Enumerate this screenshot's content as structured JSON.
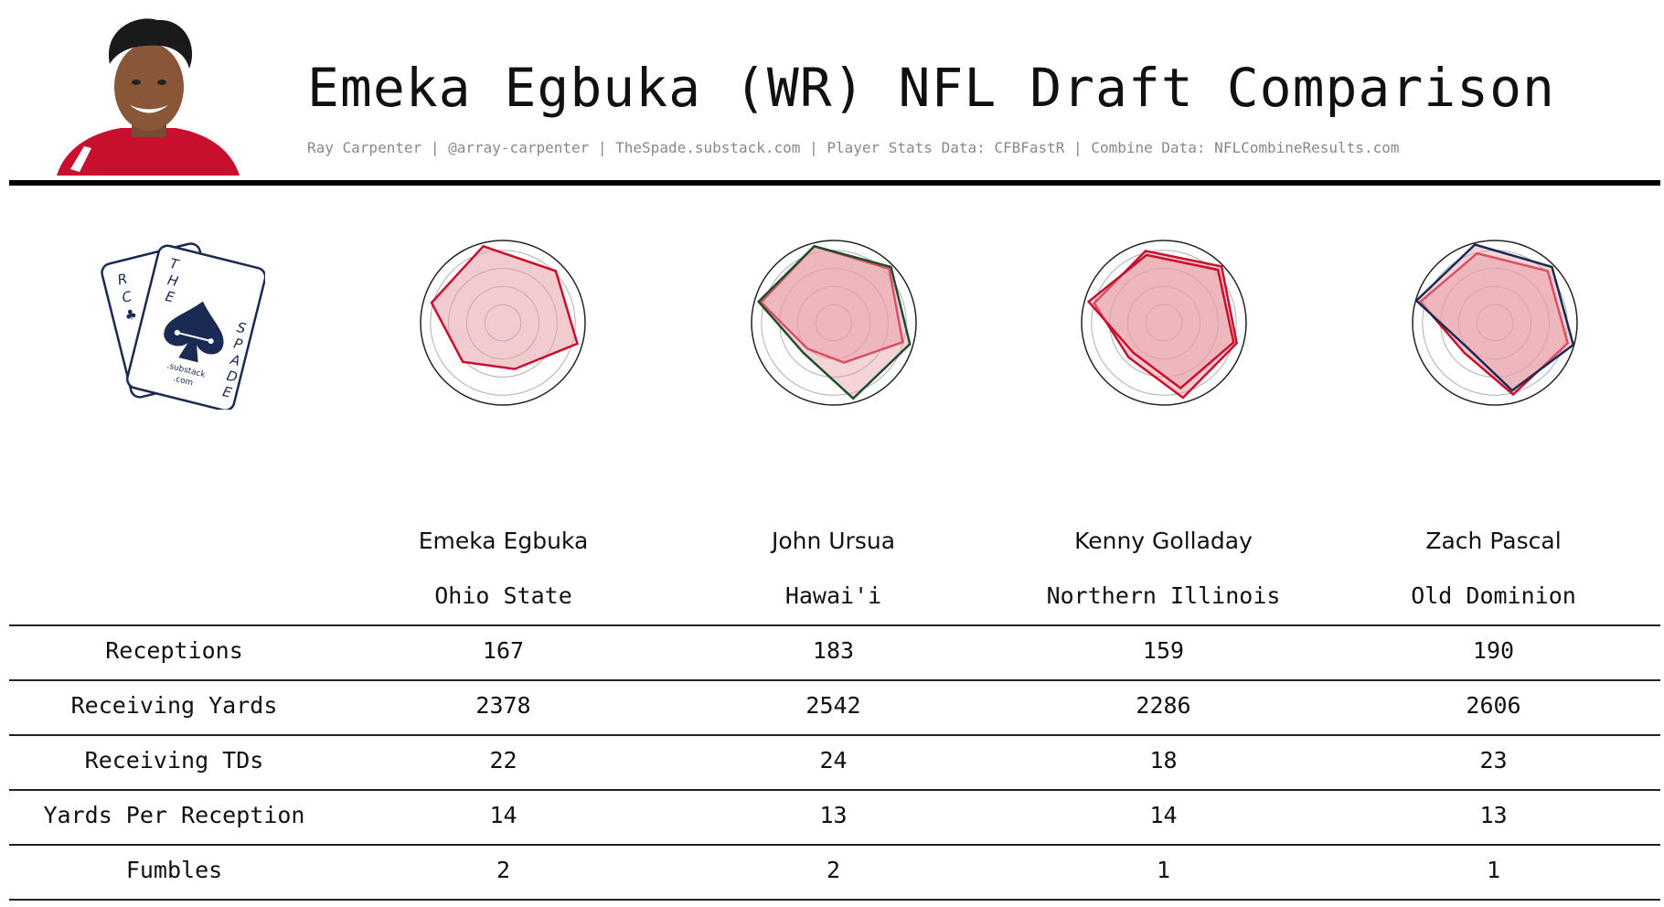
{
  "header": {
    "title": "Emeka Egbuka (WR) NFL Draft Comparison",
    "subtitle": "Ray Carpenter | @array-carpenter | TheSpade.substack.com | Player Stats Data: CFBFastR | Combine Data: NFLCombineResults.com"
  },
  "logo": {
    "letters_left": [
      "R",
      "C",
      "♣"
    ],
    "letters_right_top": [
      "T",
      "H",
      "E"
    ],
    "letters_right_bottom": [
      "S",
      "P",
      "A",
      "D",
      "E"
    ],
    "line1": ".substack",
    "line2": ".com"
  },
  "colors": {
    "ohio_state_red": "#c8102e",
    "hawaii_green": "#1f4d2b",
    "niu_red": "#c8102e",
    "odu_navy": "#1b2a52",
    "radar_fill": "#e8a0a8"
  },
  "chart_data": {
    "type": "radar",
    "charts": [
      {
        "player": "Emeka Egbuka",
        "school": "Ohio State",
        "series": [
          {
            "color": "#c8102e",
            "values": [
              0.96,
              0.9,
              0.94,
              0.58,
              0.68,
              0.9
            ]
          }
        ]
      },
      {
        "player": "John Ursua",
        "school": "Hawai'i",
        "series": [
          {
            "color": "#c8102e",
            "values": [
              0.96,
              0.94,
              0.87,
              0.5,
              0.45,
              0.92
            ]
          },
          {
            "color": "#1f4d2b",
            "values": [
              0.96,
              0.97,
              0.96,
              0.95,
              0.52,
              0.95
            ]
          }
        ]
      },
      {
        "player": "Kenny Golladay",
        "school": "Northern Illinois",
        "series": [
          {
            "color": "#c8102e",
            "values": [
              0.9,
              0.98,
              0.92,
              0.94,
              0.6,
              0.88
            ]
          },
          {
            "color": "#c8102e",
            "values": [
              0.85,
              0.92,
              0.88,
              0.82,
              0.52,
              0.95
            ]
          }
        ]
      },
      {
        "player": "Zach Pascal",
        "school": "Old Dominion",
        "series": [
          {
            "color": "#c8102e",
            "values": [
              0.87,
              0.9,
              0.92,
              0.9,
              0.52,
              0.94
            ]
          },
          {
            "color": "#1b2a52",
            "values": [
              0.98,
              0.97,
              0.99,
              0.85,
              0.45,
              0.99
            ]
          }
        ]
      }
    ]
  },
  "table": {
    "players": [
      {
        "name": "Emeka Egbuka",
        "school": "Ohio State"
      },
      {
        "name": "John Ursua",
        "school": "Hawai'i"
      },
      {
        "name": "Kenny Golladay",
        "school": "Northern Illinois"
      },
      {
        "name": "Zach Pascal",
        "school": "Old Dominion"
      }
    ],
    "rows": [
      {
        "label": "Receptions",
        "values": [
          "167",
          "183",
          "159",
          "190"
        ]
      },
      {
        "label": "Receiving Yards",
        "values": [
          "2378",
          "2542",
          "2286",
          "2606"
        ]
      },
      {
        "label": "Receiving TDs",
        "values": [
          "22",
          "24",
          "18",
          "23"
        ]
      },
      {
        "label": "Yards Per Reception",
        "values": [
          "14",
          "13",
          "14",
          "13"
        ]
      },
      {
        "label": "Fumbles",
        "values": [
          "2",
          "2",
          "1",
          "1"
        ]
      }
    ]
  }
}
